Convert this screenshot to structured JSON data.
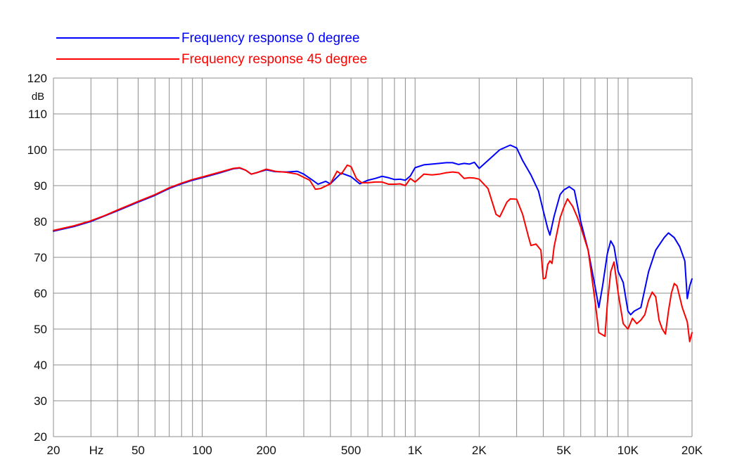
{
  "chart_data": {
    "type": "line",
    "x_scale": "log",
    "xlim": [
      20,
      20000
    ],
    "ylim": [
      20,
      120
    ],
    "grid": true,
    "legend_position": "top-left",
    "y_unit": "dB",
    "x_unit": "Hz",
    "x_ticks": [
      {
        "value": 20,
        "label": "20"
      },
      {
        "value": 50,
        "label": "50"
      },
      {
        "value": 100,
        "label": "100"
      },
      {
        "value": 200,
        "label": "200"
      },
      {
        "value": 500,
        "label": "500"
      },
      {
        "value": 1000,
        "label": "1K"
      },
      {
        "value": 2000,
        "label": "2K"
      },
      {
        "value": 5000,
        "label": "5K"
      },
      {
        "value": 10000,
        "label": "10K"
      },
      {
        "value": 20000,
        "label": "20K"
      }
    ],
    "y_ticks": [
      20,
      30,
      40,
      50,
      60,
      70,
      80,
      90,
      100,
      110,
      120
    ],
    "series": [
      {
        "name": "Frequency response 0 degree",
        "color": "#0000ff",
        "points": [
          [
            20,
            77.3
          ],
          [
            25,
            78.6
          ],
          [
            30,
            80
          ],
          [
            35,
            81.6
          ],
          [
            40,
            83
          ],
          [
            50,
            85.4
          ],
          [
            60,
            87.3
          ],
          [
            70,
            89.2
          ],
          [
            80,
            90.5
          ],
          [
            90,
            91.5
          ],
          [
            100,
            92.2
          ],
          [
            120,
            93.5
          ],
          [
            140,
            94.7
          ],
          [
            150,
            94.9
          ],
          [
            160,
            94.3
          ],
          [
            170,
            93.2
          ],
          [
            180,
            93.6
          ],
          [
            200,
            94.4
          ],
          [
            220,
            93.9
          ],
          [
            250,
            93.8
          ],
          [
            280,
            94
          ],
          [
            300,
            93.2
          ],
          [
            330,
            91.5
          ],
          [
            350,
            90.4
          ],
          [
            380,
            91.2
          ],
          [
            400,
            90.5
          ],
          [
            450,
            93.5
          ],
          [
            500,
            92.5
          ],
          [
            550,
            90.5
          ],
          [
            600,
            91.5
          ],
          [
            650,
            92
          ],
          [
            700,
            92.6
          ],
          [
            750,
            92.2
          ],
          [
            800,
            91.7
          ],
          [
            850,
            91.8
          ],
          [
            900,
            91.5
          ],
          [
            950,
            92.7
          ],
          [
            1000,
            95
          ],
          [
            1100,
            95.8
          ],
          [
            1200,
            96
          ],
          [
            1300,
            96.2
          ],
          [
            1400,
            96.4
          ],
          [
            1500,
            96.4
          ],
          [
            1600,
            95.9
          ],
          [
            1700,
            96.2
          ],
          [
            1800,
            96
          ],
          [
            1900,
            96.5
          ],
          [
            2000,
            94.8
          ],
          [
            2200,
            97
          ],
          [
            2500,
            100
          ],
          [
            2800,
            101.3
          ],
          [
            3000,
            100.5
          ],
          [
            3200,
            97
          ],
          [
            3500,
            93
          ],
          [
            3800,
            88.5
          ],
          [
            4000,
            83
          ],
          [
            4200,
            78
          ],
          [
            4300,
            76.2
          ],
          [
            4500,
            81.5
          ],
          [
            4800,
            87.5
          ],
          [
            5000,
            88.8
          ],
          [
            5300,
            89.7
          ],
          [
            5600,
            88.7
          ],
          [
            6000,
            80
          ],
          [
            6500,
            72
          ],
          [
            7000,
            62
          ],
          [
            7300,
            56
          ],
          [
            7600,
            62
          ],
          [
            8000,
            71
          ],
          [
            8300,
            74.6
          ],
          [
            8600,
            73
          ],
          [
            9000,
            66
          ],
          [
            9500,
            63
          ],
          [
            10000,
            55
          ],
          [
            10300,
            54
          ],
          [
            10700,
            55
          ],
          [
            11500,
            56
          ],
          [
            12500,
            66
          ],
          [
            13500,
            72
          ],
          [
            14800,
            75.5
          ],
          [
            15500,
            76.8
          ],
          [
            16500,
            75.5
          ],
          [
            17500,
            73
          ],
          [
            18500,
            69
          ],
          [
            19000,
            58.5
          ],
          [
            19500,
            62
          ],
          [
            20000,
            64
          ]
        ]
      },
      {
        "name": "Frequency response 45 degree",
        "color": "#ff0000",
        "points": [
          [
            20,
            77.5
          ],
          [
            25,
            78.8
          ],
          [
            30,
            80.2
          ],
          [
            35,
            81.7
          ],
          [
            40,
            83.2
          ],
          [
            50,
            85.6
          ],
          [
            60,
            87.5
          ],
          [
            70,
            89.4
          ],
          [
            80,
            90.7
          ],
          [
            90,
            91.7
          ],
          [
            100,
            92.4
          ],
          [
            120,
            93.7
          ],
          [
            140,
            94.8
          ],
          [
            150,
            95
          ],
          [
            160,
            94.3
          ],
          [
            170,
            93.2
          ],
          [
            180,
            93.6
          ],
          [
            200,
            94.6
          ],
          [
            220,
            94
          ],
          [
            250,
            93.7
          ],
          [
            280,
            93.2
          ],
          [
            300,
            92.3
          ],
          [
            320,
            91.5
          ],
          [
            340,
            89
          ],
          [
            360,
            89.2
          ],
          [
            400,
            90.5
          ],
          [
            430,
            94
          ],
          [
            450,
            93.2
          ],
          [
            480,
            95.7
          ],
          [
            500,
            95.3
          ],
          [
            530,
            92
          ],
          [
            560,
            90.8
          ],
          [
            600,
            90.8
          ],
          [
            650,
            91
          ],
          [
            700,
            91
          ],
          [
            750,
            90.4
          ],
          [
            800,
            90.4
          ],
          [
            850,
            90.5
          ],
          [
            900,
            90
          ],
          [
            950,
            92
          ],
          [
            1000,
            91
          ],
          [
            1100,
            93.2
          ],
          [
            1200,
            93
          ],
          [
            1300,
            93.2
          ],
          [
            1400,
            93.6
          ],
          [
            1500,
            93.8
          ],
          [
            1600,
            93.6
          ],
          [
            1700,
            92
          ],
          [
            1800,
            92.2
          ],
          [
            1900,
            92.1
          ],
          [
            2000,
            91.8
          ],
          [
            2200,
            89.2
          ],
          [
            2400,
            82
          ],
          [
            2500,
            81.3
          ],
          [
            2700,
            85.4
          ],
          [
            2800,
            86.3
          ],
          [
            3000,
            86.2
          ],
          [
            3200,
            82
          ],
          [
            3400,
            76
          ],
          [
            3500,
            73.3
          ],
          [
            3700,
            73.7
          ],
          [
            3900,
            72
          ],
          [
            4000,
            64
          ],
          [
            4100,
            64.2
          ],
          [
            4200,
            68
          ],
          [
            4300,
            69
          ],
          [
            4400,
            68.3
          ],
          [
            4500,
            73
          ],
          [
            4800,
            81
          ],
          [
            5000,
            84
          ],
          [
            5200,
            86.3
          ],
          [
            5500,
            84.2
          ],
          [
            5800,
            81
          ],
          [
            6000,
            78.5
          ],
          [
            6500,
            72
          ],
          [
            7000,
            58
          ],
          [
            7300,
            49
          ],
          [
            7800,
            48
          ],
          [
            8000,
            57
          ],
          [
            8300,
            66
          ],
          [
            8600,
            68.7
          ],
          [
            9000,
            60
          ],
          [
            9500,
            51.5
          ],
          [
            10000,
            50
          ],
          [
            10500,
            53
          ],
          [
            11000,
            51.5
          ],
          [
            11500,
            52.5
          ],
          [
            12000,
            54
          ],
          [
            12500,
            58
          ],
          [
            13000,
            60.3
          ],
          [
            13500,
            59
          ],
          [
            14000,
            52.5
          ],
          [
            14500,
            50
          ],
          [
            15000,
            48.6
          ],
          [
            15500,
            55
          ],
          [
            16000,
            60
          ],
          [
            16500,
            62.7
          ],
          [
            17000,
            62
          ],
          [
            18000,
            56
          ],
          [
            19000,
            52
          ],
          [
            19500,
            46.5
          ],
          [
            20000,
            49
          ]
        ]
      }
    ]
  }
}
